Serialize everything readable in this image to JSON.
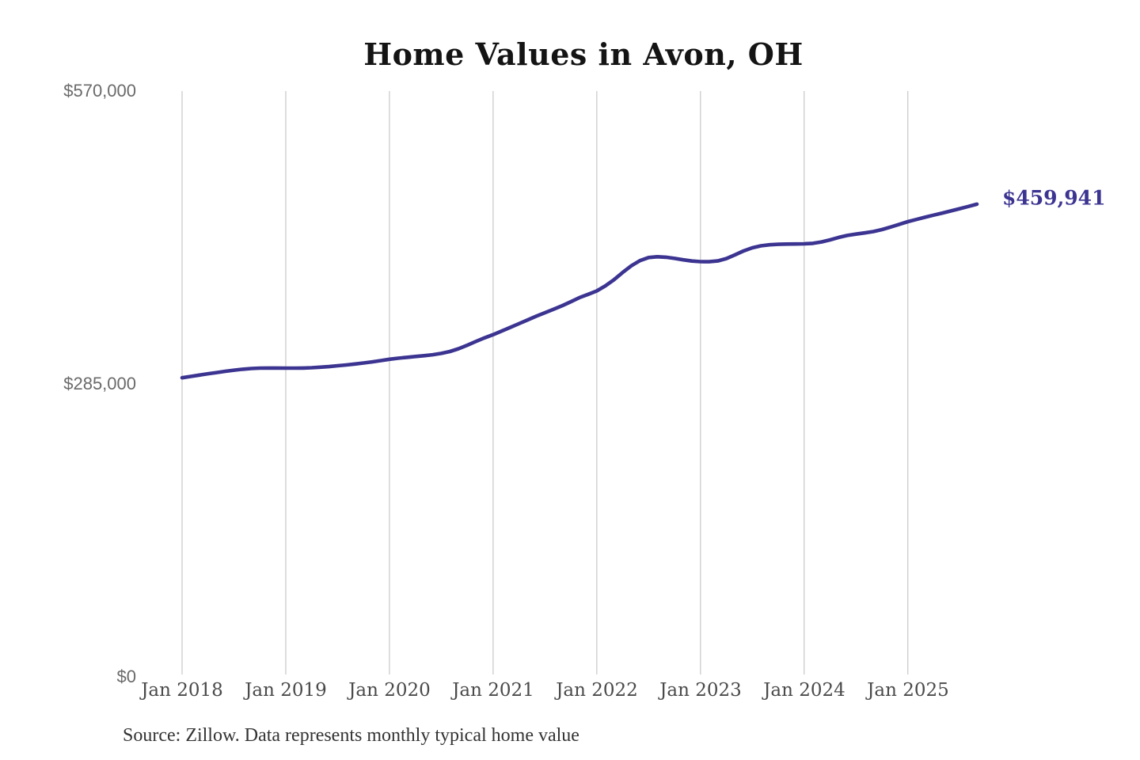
{
  "chart_data": {
    "type": "line",
    "title": "Home Values in Avon, OH",
    "source_note": "Source: Zillow. Data represents monthly typical home value",
    "series_name": "Monthly typical home value",
    "x_start": "2018-01",
    "x_end": "2025-09",
    "x_tick_labels": [
      "Jan 2018",
      "Jan 2019",
      "Jan 2020",
      "Jan 2021",
      "Jan 2022",
      "Jan 2023",
      "Jan 2024",
      "Jan 2025"
    ],
    "y_tick_labels": [
      "$0",
      "$285,000",
      "$570,000"
    ],
    "y_tick_values": [
      0,
      285000,
      570000
    ],
    "ylim": [
      0,
      570000
    ],
    "grid": "vertical-only",
    "legend": "none",
    "final_value": 459941,
    "final_value_label": "$459,941",
    "line_color": "#3c3491",
    "grid_color": "#cbcbcb",
    "values": [
      291000,
      292300,
      293600,
      294900,
      296100,
      297300,
      298400,
      299300,
      300000,
      300400,
      300500,
      300500,
      300400,
      300400,
      300500,
      300800,
      301300,
      301900,
      302700,
      303500,
      304400,
      305400,
      306500,
      307700,
      309000,
      310000,
      310900,
      311700,
      312500,
      313400,
      314700,
      316600,
      319300,
      322700,
      326400,
      329800,
      333000,
      336500,
      340100,
      343700,
      347300,
      350900,
      354300,
      357700,
      361200,
      365000,
      369000,
      372200,
      375500,
      380500,
      386500,
      393500,
      400000,
      405000,
      408000,
      408800,
      408300,
      407200,
      405800,
      404600,
      404000,
      403900,
      404700,
      407000,
      410600,
      414500,
      417500,
      419400,
      420400,
      420900,
      421100,
      421200,
      421300,
      421800,
      423200,
      425200,
      427600,
      429500,
      430800,
      432000,
      433300,
      435200,
      437700,
      440300,
      442900,
      445100,
      447200,
      449300,
      451300,
      453400,
      455500,
      457700,
      459941
    ]
  }
}
